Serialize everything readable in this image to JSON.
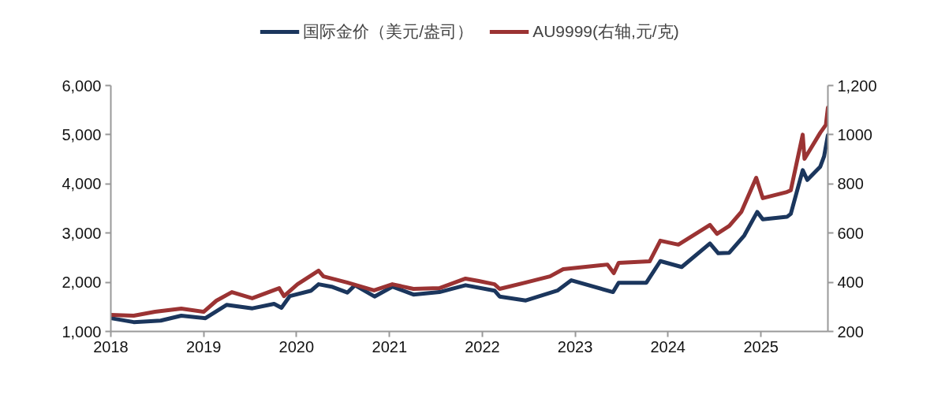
{
  "chart_data": {
    "type": "line",
    "legend": "top",
    "grid": false,
    "marker": "none",
    "line_style": "solid",
    "xlim": [
      "2018-01-01",
      "2025-09-21"
    ],
    "xticks": [
      "2018",
      "2019",
      "2020",
      "2021",
      "2022",
      "2023",
      "2024",
      "2025"
    ],
    "ylim": [
      1000,
      6000
    ],
    "yticks": [
      {
        "value": 1000,
        "label": "1,000"
      },
      {
        "value": 2000,
        "label": "2,000"
      },
      {
        "value": 3000,
        "label": "3,000"
      },
      {
        "value": 4000,
        "label": "4,000"
      },
      {
        "value": 5000,
        "label": "5,000"
      },
      {
        "value": 6000,
        "label": "6,000"
      }
    ],
    "y2lim": [
      200,
      1200
    ],
    "y2ticks": [
      200,
      400,
      600,
      800,
      1000,
      {
        "value": 1200,
        "label": "1,200"
      }
    ],
    "series": [
      {
        "name": "国际金价（美元/盎司）",
        "color": "#1b365d",
        "x": [
          "2018-01-01",
          "2018-04-01",
          "2018-07-16",
          "2018-10-05",
          "2019-01-08",
          "2019-04-01",
          "2019-07-12",
          "2019-10-05",
          "2019-11-03",
          "2019-12-06",
          "2020-02-28",
          "2020-03-28",
          "2020-05-18",
          "2020-07-19",
          "2020-08-18",
          "2020-11-03",
          "2021-01-12",
          "2021-04-05",
          "2021-07-16",
          "2021-10-27",
          "2022-02-18",
          "2022-03-10",
          "2022-06-21",
          "2022-10-23",
          "2022-12-17",
          "2023-05-30",
          "2023-06-21",
          "2023-10-08",
          "2023-12-02",
          "2024-02-24",
          "2024-06-14",
          "2024-07-17",
          "2024-08-29",
          "2024-10-27",
          "2024-12-17",
          "2025-01-08",
          "2025-04-13",
          "2025-04-28",
          "2025-06-14",
          "2025-07-02",
          "2025-08-22",
          "2025-09-06",
          "2025-09-21"
        ],
        "values": [
          1270,
          1190,
          1220,
          1320,
          1270,
          1540,
          1470,
          1560,
          1480,
          1720,
          1830,
          1960,
          1910,
          1790,
          1940,
          1710,
          1910,
          1750,
          1800,
          1940,
          1830,
          1710,
          1630,
          1830,
          2040,
          1800,
          1990,
          1990,
          2430,
          2310,
          2790,
          2590,
          2600,
          2950,
          3430,
          3280,
          3330,
          3390,
          4280,
          4080,
          4350,
          4560,
          4990
        ]
      },
      {
        "name": "AU9999(右轴,元/克)",
        "color": "#9b3333",
        "axis": "y2",
        "x": [
          "2018-01-01",
          "2018-04-01",
          "2018-06-24",
          "2018-10-05",
          "2019-01-01",
          "2019-02-20",
          "2019-04-22",
          "2019-07-11",
          "2019-10-25",
          "2019-11-13",
          "2020-01-05",
          "2020-03-28",
          "2020-04-16",
          "2020-07-18",
          "2020-11-01",
          "2021-01-12",
          "2021-04-05",
          "2021-07-16",
          "2021-10-27",
          "2021-12-18",
          "2022-02-18",
          "2022-03-10",
          "2022-06-21",
          "2022-09-24",
          "2022-11-15",
          "2023-05-08",
          "2023-06-02",
          "2023-06-21",
          "2023-10-21",
          "2023-12-02",
          "2024-02-11",
          "2024-06-14",
          "2024-07-12",
          "2024-08-29",
          "2024-10-16",
          "2024-12-13",
          "2025-01-08",
          "2025-04-13",
          "2025-04-28",
          "2025-06-14",
          "2025-06-21",
          "2025-08-22",
          "2025-09-13",
          "2025-09-21"
        ],
        "values": [
          267,
          264,
          280,
          293,
          280,
          325,
          360,
          335,
          376,
          344,
          392,
          447,
          424,
          399,
          367,
          392,
          373,
          376,
          415,
          405,
          392,
          373,
          399,
          424,
          453,
          472,
          437,
          479,
          485,
          569,
          553,
          633,
          597,
          629,
          687,
          825,
          742,
          767,
          774,
          1000,
          902,
          1008,
          1040,
          1110
        ]
      }
    ]
  }
}
